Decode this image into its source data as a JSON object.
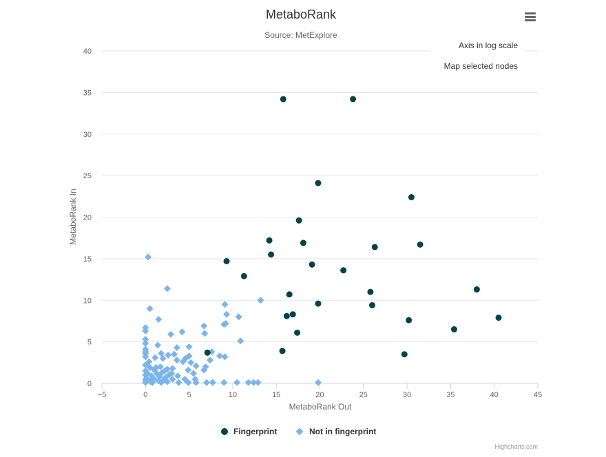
{
  "chart_data": {
    "type": "scatter",
    "title": "MetaboRank",
    "subtitle": "Source: MetExplore",
    "xlabel": "MetaboRank Out",
    "ylabel": "MetaboRank In",
    "xlim": [
      -5,
      45
    ],
    "ylim": [
      0,
      40
    ],
    "xticks": [
      -5,
      0,
      5,
      10,
      15,
      20,
      25,
      30,
      35,
      40,
      45
    ],
    "yticks": [
      0,
      5,
      10,
      15,
      20,
      25,
      30,
      35,
      40
    ],
    "grid": "horizontal",
    "legend_position": "bottom-center",
    "credits": "Highcharts.com",
    "series": [
      {
        "name": "Fingerprint",
        "color": "#054349",
        "marker": "circle",
        "points": [
          [
            15.8,
            34.2
          ],
          [
            23.8,
            34.2
          ],
          [
            19.8,
            24.1
          ],
          [
            30.5,
            22.4
          ],
          [
            17.6,
            19.6
          ],
          [
            14.2,
            17.2
          ],
          [
            18.1,
            16.9
          ],
          [
            26.3,
            16.4
          ],
          [
            31.5,
            16.7
          ],
          [
            14.4,
            15.5
          ],
          [
            9.3,
            14.7
          ],
          [
            19.1,
            14.3
          ],
          [
            22.7,
            13.6
          ],
          [
            11.3,
            12.9
          ],
          [
            38.0,
            11.3
          ],
          [
            25.8,
            11.0
          ],
          [
            16.5,
            10.7
          ],
          [
            19.8,
            9.6
          ],
          [
            26.0,
            9.4
          ],
          [
            16.2,
            8.1
          ],
          [
            16.9,
            8.3
          ],
          [
            40.5,
            7.9
          ],
          [
            30.2,
            7.6
          ],
          [
            35.4,
            6.5
          ],
          [
            17.4,
            6.1
          ],
          [
            15.7,
            3.9
          ],
          [
            29.7,
            3.5
          ],
          [
            7.1,
            3.7
          ]
        ]
      },
      {
        "name": "Not in fingerprint",
        "color": "#7cb5ec",
        "marker": "diamond",
        "points": [
          [
            0.3,
            15.2
          ],
          [
            2.5,
            11.4
          ],
          [
            9.1,
            9.5
          ],
          [
            13.2,
            10.0
          ],
          [
            0.5,
            9.0
          ],
          [
            9.3,
            8.3
          ],
          [
            10.7,
            8.0
          ],
          [
            1.5,
            7.7
          ],
          [
            9.2,
            7.2
          ],
          [
            9.0,
            7.1
          ],
          [
            6.7,
            6.9
          ],
          [
            0.0,
            6.7
          ],
          [
            0.0,
            6.3
          ],
          [
            4.2,
            6.2
          ],
          [
            2.9,
            5.9
          ],
          [
            6.8,
            6.0
          ],
          [
            0.0,
            5.3
          ],
          [
            10.9,
            5.1
          ],
          [
            0.0,
            4.8
          ],
          [
            1.4,
            4.6
          ],
          [
            3.6,
            4.3
          ],
          [
            5.0,
            4.4
          ],
          [
            0.0,
            4.1
          ],
          [
            0.0,
            3.8
          ],
          [
            0.0,
            3.6
          ],
          [
            1.8,
            3.6
          ],
          [
            2.6,
            3.4
          ],
          [
            3.3,
            3.5
          ],
          [
            7.6,
            3.8
          ],
          [
            8.5,
            3.3
          ],
          [
            9.1,
            3.2
          ],
          [
            0.0,
            3.2
          ],
          [
            1.1,
            3.1
          ],
          [
            2.0,
            3.0
          ],
          [
            5.0,
            3.3
          ],
          [
            4.6,
            3.0
          ],
          [
            7.4,
            2.8
          ],
          [
            3.6,
            2.8
          ],
          [
            4.3,
            2.6
          ],
          [
            5.2,
            2.5
          ],
          [
            0.0,
            2.2
          ],
          [
            5.8,
            2.1
          ],
          [
            6.9,
            2.0
          ],
          [
            0.5,
            1.9
          ],
          [
            1.7,
            2.0
          ],
          [
            2.5,
            1.7
          ],
          [
            3.1,
            1.8
          ],
          [
            6.7,
            1.6
          ],
          [
            4.9,
            1.6
          ],
          [
            5.5,
            1.2
          ],
          [
            0.0,
            1.5
          ],
          [
            1.0,
            1.6
          ],
          [
            2.2,
            1.5
          ],
          [
            3.0,
            1.2
          ],
          [
            0.2,
            1.2
          ],
          [
            1.3,
            1.2
          ],
          [
            2.7,
            1.0
          ],
          [
            3.7,
            0.9
          ],
          [
            0.0,
            1.0
          ],
          [
            0.7,
            0.9
          ],
          [
            1.6,
            0.8
          ],
          [
            2.3,
            0.7
          ],
          [
            0.1,
            0.6
          ],
          [
            1.0,
            0.5
          ],
          [
            3.1,
            0.5
          ],
          [
            4.5,
            0.5
          ],
          [
            5.7,
            0.5
          ],
          [
            0.0,
            0.4
          ],
          [
            0.5,
            0.3
          ],
          [
            1.5,
            0.3
          ],
          [
            2.5,
            0.2
          ],
          [
            0.0,
            0.1
          ],
          [
            0.8,
            0.1
          ],
          [
            1.8,
            0.1
          ],
          [
            3.8,
            0.1
          ],
          [
            4.9,
            0.1
          ],
          [
            5.8,
            0.1
          ],
          [
            7.0,
            0.1
          ],
          [
            7.7,
            0.1
          ],
          [
            9.0,
            0.1
          ],
          [
            10.5,
            0.1
          ],
          [
            11.8,
            0.1
          ],
          [
            12.4,
            0.1
          ],
          [
            12.9,
            0.1
          ],
          [
            19.8,
            0.1
          ],
          [
            2.1,
            0.4
          ],
          [
            1.2,
            1.9
          ],
          [
            0.4,
            2.6
          ],
          [
            1.9,
            1.3
          ],
          [
            0.6,
            0.2
          ]
        ]
      }
    ]
  },
  "menu": {
    "items": [
      "Axis in log scale",
      "Map selected nodes"
    ]
  },
  "icons": {
    "menu": "hamburger-menu-icon"
  }
}
